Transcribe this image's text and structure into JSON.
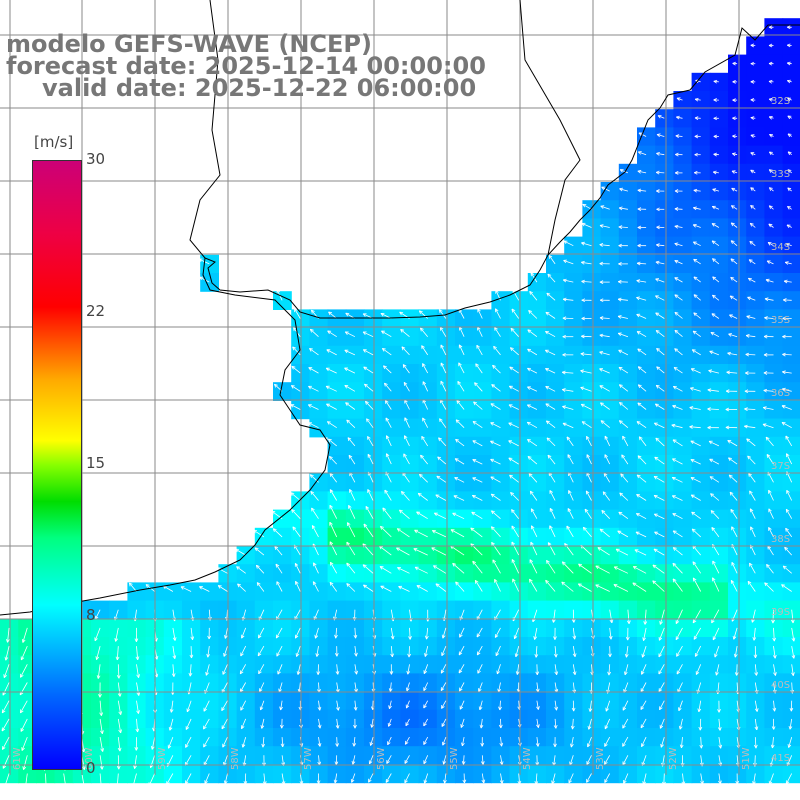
{
  "title": {
    "line1": "modelo GEFS-WAVE (NCEP)",
    "line2": "forecast date: 2025-12-14 00:00:00",
    "line3": "valid date: 2025-12-22 06:00:00"
  },
  "colorbar": {
    "units": "[m/s]",
    "ticks": [
      {
        "label": "30",
        "value": 30
      },
      {
        "label": "22",
        "value": 22
      },
      {
        "label": "15",
        "value": 15
      },
      {
        "label": "8",
        "value": 8
      },
      {
        "label": "0",
        "value": 0
      }
    ],
    "range": [
      0,
      30
    ]
  },
  "lat_labels": [
    "32S",
    "33S",
    "34S",
    "35S",
    "36S",
    "37S",
    "38S",
    "39S",
    "40S",
    "41S"
  ],
  "lon_labels": [
    "61W",
    "60W",
    "59W",
    "58W",
    "57W",
    "56W",
    "55W",
    "54W",
    "53W",
    "52W",
    "51W"
  ],
  "colors": {
    "land": "#ffffff",
    "grid": "#8a8a8a",
    "coast": "#000000",
    "title": "#777777",
    "vector": "#ffffff"
  }
}
